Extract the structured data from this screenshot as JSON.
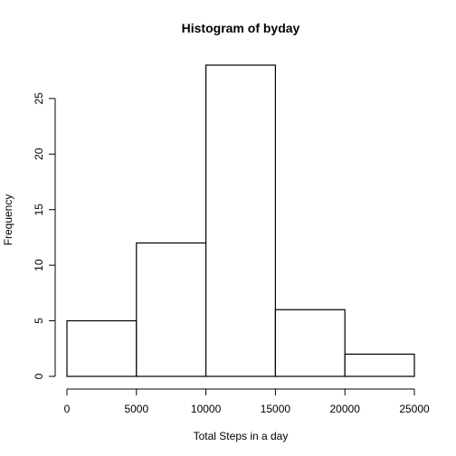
{
  "chart_data": {
    "type": "bar",
    "title": "Histogram of byday",
    "xlabel": "Total Steps in a day",
    "ylabel": "Frequency",
    "bins": [
      {
        "start": 0,
        "end": 5000,
        "count": 5
      },
      {
        "start": 5000,
        "end": 10000,
        "count": 12
      },
      {
        "start": 10000,
        "end": 15000,
        "count": 28
      },
      {
        "start": 15000,
        "end": 20000,
        "count": 6
      },
      {
        "start": 20000,
        "end": 25000,
        "count": 2
      }
    ],
    "xlim": [
      0,
      25000
    ],
    "ylim": [
      0,
      28
    ],
    "x_ticks": [
      0,
      5000,
      10000,
      15000,
      20000,
      25000
    ],
    "y_ticks": [
      0,
      5,
      10,
      15,
      20,
      25
    ],
    "grid": false
  }
}
